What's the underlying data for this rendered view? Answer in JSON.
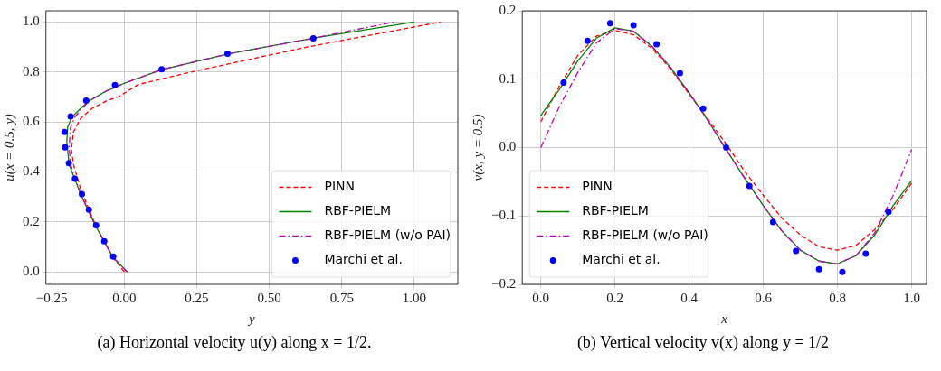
{
  "chart_data": [
    {
      "type": "line",
      "xlabel": "y",
      "ylabel": "u(x = 0.5, y)",
      "annotations": [
        "(a) Horizontal velocity u(y) along x = 1/2."
      ],
      "xlim": [
        -0.27,
        1.15
      ],
      "ylim": [
        -0.05,
        1.045
      ],
      "xticks": [
        {
          "value": -0.25,
          "label": "−0.25"
        },
        {
          "value": 0,
          "label": "0.00"
        },
        {
          "value": 0.25,
          "label": "0.25"
        },
        {
          "value": 0.5,
          "label": "0.50"
        },
        {
          "value": 0.75,
          "label": "0.75"
        },
        {
          "value": 1,
          "label": "1.00"
        }
      ],
      "yticks": [
        {
          "value": 0,
          "label": "0.0"
        },
        {
          "value": 0.2,
          "label": "0.2"
        },
        {
          "value": 0.4,
          "label": "0.4"
        },
        {
          "value": 0.6,
          "label": "0.6"
        },
        {
          "value": 0.8,
          "label": "0.8"
        },
        {
          "value": 1,
          "label": "1.0"
        }
      ],
      "grid": true,
      "legend": "bottom right",
      "series": [
        {
          "name": "PINN",
          "type": "line",
          "color": "#ff0000",
          "line_style": "dashed",
          "x": [
            0,
            -0.04,
            -0.1,
            -0.15,
            -0.175,
            -0.182,
            -0.175,
            -0.15,
            -0.11,
            -0.06,
            -0.021,
            0.048,
            0.23,
            0.63,
            1.09
          ],
          "values": [
            0,
            0.06,
            0.19,
            0.33,
            0.43,
            0.49,
            0.56,
            0.615,
            0.655,
            0.685,
            0.7,
            0.75,
            0.8,
            0.9,
            1.0
          ]
        },
        {
          "name": "RBF-PIELM",
          "type": "line",
          "color": "#008000",
          "line_style": "solid",
          "x": [
            0.01,
            -0.04,
            -0.1,
            -0.15,
            -0.19,
            -0.198,
            -0.195,
            -0.18,
            -0.15,
            -0.12,
            -0.06,
            0,
            0.13,
            0.36,
            0.65,
            1.0
          ],
          "values": [
            0,
            0.06,
            0.187,
            0.31,
            0.43,
            0.52,
            0.58,
            0.62,
            0.655,
            0.685,
            0.725,
            0.755,
            0.81,
            0.873,
            0.935,
            1.0
          ]
        },
        {
          "name": "RBF-PIELM (w/o PAI)",
          "type": "line",
          "color": "#bf00bf",
          "line_style": "dashdot",
          "x": [
            0.01,
            -0.04,
            -0.1,
            -0.15,
            -0.185,
            -0.19,
            -0.185,
            -0.17,
            -0.145,
            -0.12,
            -0.06,
            0,
            0.13,
            0.36,
            0.65,
            0.93
          ],
          "values": [
            0,
            0.06,
            0.187,
            0.31,
            0.43,
            0.5,
            0.58,
            0.62,
            0.655,
            0.685,
            0.725,
            0.755,
            0.81,
            0.873,
            0.935,
            1.0
          ]
        },
        {
          "name": "Marchi et al.",
          "type": "scatter",
          "marker": "circle",
          "color": "#0000ff",
          "x": [
            -0.038,
            -0.069,
            -0.097,
            -0.122,
            -0.146,
            -0.17,
            -0.191,
            -0.204,
            -0.206,
            -0.185,
            -0.131,
            -0.032,
            0.129,
            0.356,
            0.652
          ],
          "values": [
            0.061,
            0.123,
            0.187,
            0.249,
            0.311,
            0.373,
            0.435,
            0.498,
            0.56,
            0.622,
            0.685,
            0.748,
            0.811,
            0.873,
            0.935
          ]
        }
      ]
    },
    {
      "type": "line",
      "xlabel": "x",
      "ylabel": "v(x, y = 0.5)",
      "annotations": [
        "(b) Vertical velocity v(x) along y = 1/2"
      ],
      "xlim": [
        -0.05,
        1.04
      ],
      "ylim": [
        -0.2,
        0.2
      ],
      "xticks": [
        {
          "value": 0,
          "label": "0.0"
        },
        {
          "value": 0.2,
          "label": "0.2"
        },
        {
          "value": 0.4,
          "label": "0.4"
        },
        {
          "value": 0.6,
          "label": "0.6"
        },
        {
          "value": 0.8,
          "label": "0.8"
        },
        {
          "value": 1,
          "label": "1.0"
        }
      ],
      "yticks": [
        {
          "value": -0.2,
          "label": "−0.2"
        },
        {
          "value": -0.1,
          "label": "−0.1"
        },
        {
          "value": 0,
          "label": "0.0"
        },
        {
          "value": 0.1,
          "label": "0.1"
        },
        {
          "value": 0.2,
          "label": "0.2"
        }
      ],
      "grid": true,
      "legend": "bottom left",
      "series": [
        {
          "name": "PINN",
          "type": "line",
          "color": "#ff0000",
          "line_style": "dashed",
          "x": [
            0,
            0.05,
            0.1,
            0.15,
            0.2,
            0.25,
            0.3,
            0.35,
            0.4,
            0.45,
            0.5,
            0.55,
            0.6,
            0.65,
            0.7,
            0.75,
            0.8,
            0.85,
            0.9,
            0.95,
            1.0
          ],
          "values": [
            0.038,
            0.09,
            0.135,
            0.163,
            0.171,
            0.165,
            0.145,
            0.115,
            0.078,
            0.042,
            0.005,
            -0.035,
            -0.07,
            -0.103,
            -0.128,
            -0.145,
            -0.15,
            -0.143,
            -0.12,
            -0.09,
            -0.052
          ]
        },
        {
          "name": "RBF-PIELM",
          "type": "line",
          "color": "#008000",
          "line_style": "solid",
          "x": [
            0,
            0.05,
            0.1,
            0.15,
            0.2,
            0.25,
            0.3,
            0.35,
            0.4,
            0.45,
            0.5,
            0.55,
            0.6,
            0.65,
            0.7,
            0.75,
            0.8,
            0.85,
            0.9,
            0.95,
            1.0
          ],
          "values": [
            0.047,
            0.085,
            0.127,
            0.16,
            0.175,
            0.17,
            0.148,
            0.117,
            0.08,
            0.04,
            -0.003,
            -0.045,
            -0.085,
            -0.122,
            -0.15,
            -0.166,
            -0.17,
            -0.158,
            -0.128,
            -0.085,
            -0.048
          ]
        },
        {
          "name": "RBF-PIELM (w/o PAI)",
          "type": "line",
          "color": "#bf00bf",
          "line_style": "dashdot",
          "x": [
            0,
            0.05,
            0.1,
            0.15,
            0.2,
            0.25,
            0.3,
            0.35,
            0.4,
            0.45,
            0.5,
            0.55,
            0.6,
            0.65,
            0.7,
            0.75,
            0.8,
            0.85,
            0.9,
            0.95,
            1.0
          ],
          "values": [
            0,
            0.06,
            0.11,
            0.153,
            0.174,
            0.17,
            0.148,
            0.117,
            0.08,
            0.04,
            -0.003,
            -0.045,
            -0.085,
            -0.122,
            -0.15,
            -0.166,
            -0.17,
            -0.158,
            -0.125,
            -0.07,
            -0.003
          ]
        },
        {
          "name": "Marchi et al.",
          "type": "scatter",
          "marker": "circle",
          "color": "#0000ff",
          "x": [
            0.0615,
            0.126,
            0.187,
            0.25,
            0.312,
            0.375,
            0.4376,
            0.5,
            0.5624,
            0.626,
            0.688,
            0.75,
            0.813,
            0.876,
            0.9376
          ],
          "values": [
            0.095,
            0.156,
            0.182,
            0.179,
            0.151,
            0.109,
            0.057,
            0.0,
            -0.056,
            -0.109,
            -0.151,
            -0.178,
            -0.182,
            -0.155,
            -0.094
          ]
        }
      ]
    }
  ]
}
